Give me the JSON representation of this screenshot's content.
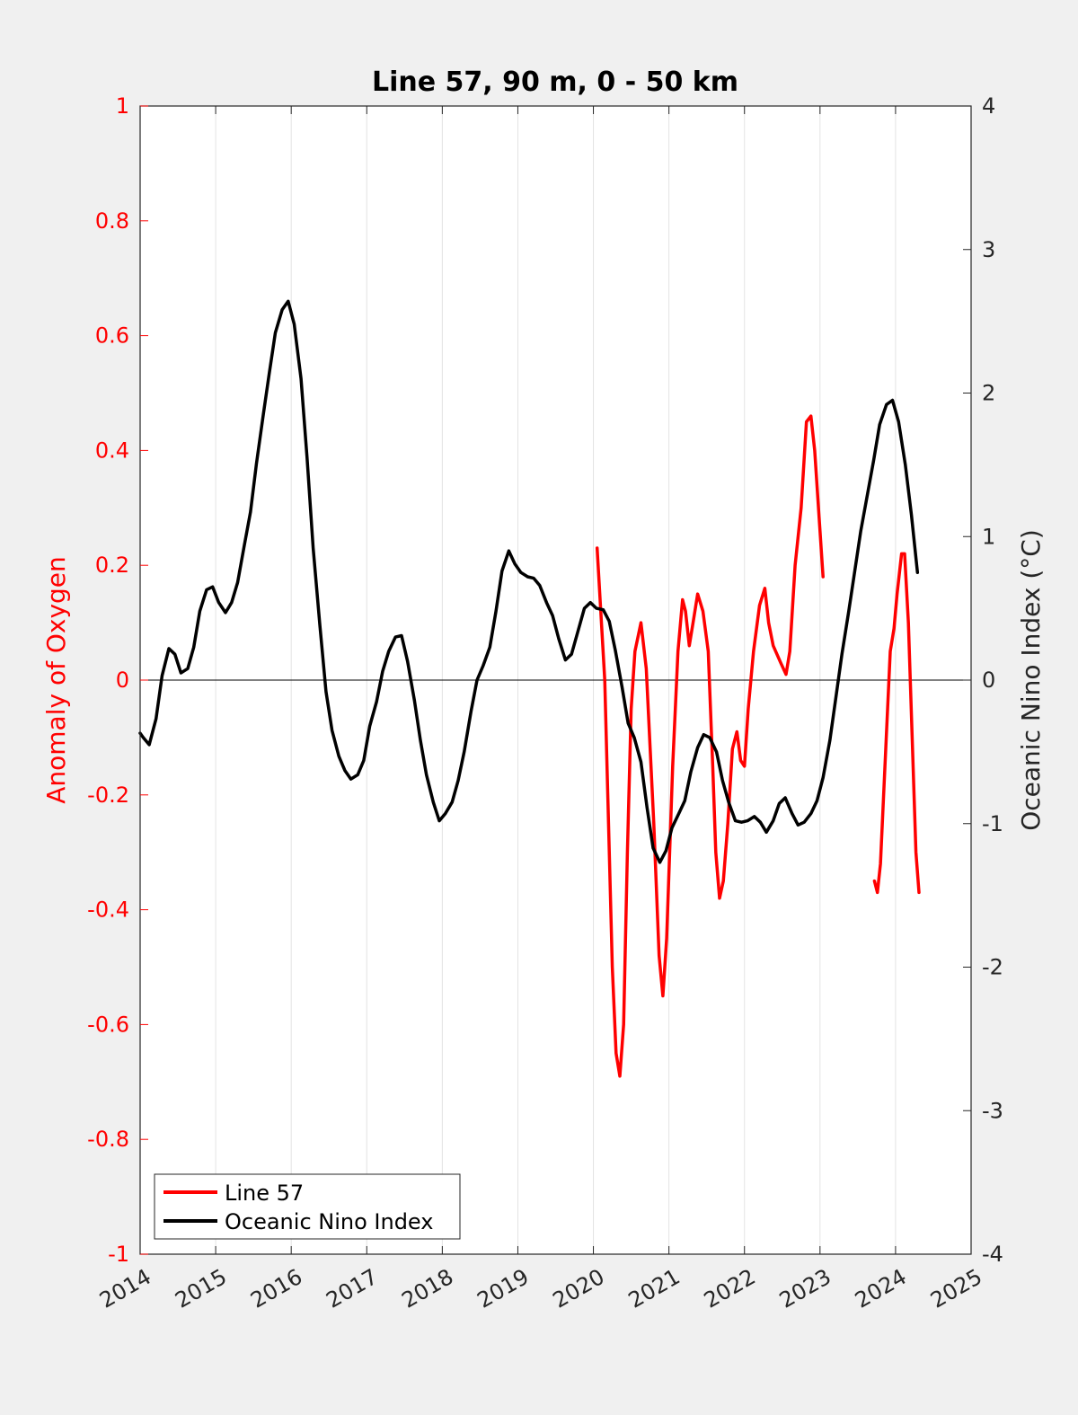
{
  "chart_data": {
    "type": "line",
    "title": "Line 57, 90 m, 0 - 50 km",
    "xlabel": "",
    "x_ticks": [
      "2014",
      "2015",
      "2016",
      "2017",
      "2018",
      "2019",
      "2020",
      "2021",
      "2022",
      "2023",
      "2024",
      "2025"
    ],
    "xlim": [
      2014,
      2025
    ],
    "y_left": {
      "label": "Anomaly of Oxygen",
      "lim": [
        -1,
        1
      ],
      "ticks": [
        "-1",
        "-0.8",
        "-0.6",
        "-0.4",
        "-0.2",
        "0",
        "0.2",
        "0.4",
        "0.6",
        "0.8",
        "1"
      ],
      "color": "#ff0000"
    },
    "y_right": {
      "label": "Oceanic Nino Index (°C)",
      "lim": [
        -4,
        4
      ],
      "ticks": [
        "-4",
        "-3",
        "-2",
        "-1",
        "0",
        "1",
        "2",
        "3",
        "4"
      ],
      "color": "#262626"
    },
    "grid": "vertical",
    "legend_position": "bottom-left",
    "series": [
      {
        "name": "Line 57",
        "axis": "left",
        "color": "#ff0000",
        "segments": [
          [
            [
              2020.05,
              0.23
            ],
            [
              2020.15,
              0.0
            ],
            [
              2020.2,
              -0.25
            ],
            [
              2020.25,
              -0.5
            ],
            [
              2020.3,
              -0.65
            ],
            [
              2020.35,
              -0.69
            ],
            [
              2020.4,
              -0.6
            ],
            [
              2020.45,
              -0.3
            ],
            [
              2020.5,
              -0.05
            ],
            [
              2020.55,
              0.05
            ],
            [
              2020.63,
              0.1
            ],
            [
              2020.7,
              0.02
            ],
            [
              2020.8,
              -0.25
            ],
            [
              2020.87,
              -0.48
            ],
            [
              2020.92,
              -0.55
            ],
            [
              2020.97,
              -0.45
            ],
            [
              2021.05,
              -0.15
            ],
            [
              2021.12,
              0.05
            ],
            [
              2021.18,
              0.14
            ],
            [
              2021.22,
              0.12
            ],
            [
              2021.27,
              0.06
            ],
            [
              2021.32,
              0.1
            ],
            [
              2021.38,
              0.15
            ],
            [
              2021.45,
              0.12
            ],
            [
              2021.52,
              0.05
            ],
            [
              2021.58,
              -0.15
            ],
            [
              2021.62,
              -0.3
            ],
            [
              2021.67,
              -0.38
            ],
            [
              2021.72,
              -0.35
            ],
            [
              2021.78,
              -0.25
            ],
            [
              2021.84,
              -0.12
            ],
            [
              2021.9,
              -0.09
            ],
            [
              2021.95,
              -0.14
            ],
            [
              2022.0,
              -0.15
            ],
            [
              2022.05,
              -0.05
            ],
            [
              2022.12,
              0.05
            ],
            [
              2022.2,
              0.13
            ],
            [
              2022.27,
              0.16
            ],
            [
              2022.32,
              0.1
            ],
            [
              2022.38,
              0.06
            ],
            [
              2022.48,
              0.03
            ],
            [
              2022.55,
              0.01
            ],
            [
              2022.6,
              0.05
            ],
            [
              2022.67,
              0.2
            ],
            [
              2022.75,
              0.3
            ],
            [
              2022.82,
              0.45
            ],
            [
              2022.88,
              0.46
            ],
            [
              2022.93,
              0.4
            ],
            [
              2022.98,
              0.3
            ],
            [
              2023.04,
              0.18
            ]
          ],
          [
            [
              2023.72,
              -0.35
            ],
            [
              2023.76,
              -0.37
            ],
            [
              2023.8,
              -0.32
            ],
            [
              2023.86,
              -0.15
            ],
            [
              2023.93,
              0.05
            ],
            [
              2023.98,
              0.09
            ],
            [
              2024.02,
              0.15
            ],
            [
              2024.08,
              0.22
            ],
            [
              2024.12,
              0.22
            ],
            [
              2024.17,
              0.1
            ],
            [
              2024.22,
              -0.1
            ],
            [
              2024.27,
              -0.3
            ],
            [
              2024.31,
              -0.37
            ]
          ]
        ]
      },
      {
        "name": "Oceanic Nino Index",
        "axis": "right",
        "color": "#000000",
        "segments": [
          [
            [
              2014.0,
              -0.37
            ],
            [
              2014.04,
              -0.4
            ],
            [
              2014.12,
              -0.45
            ],
            [
              2014.21,
              -0.27
            ],
            [
              2014.29,
              0.03
            ],
            [
              2014.38,
              0.22
            ],
            [
              2014.46,
              0.18
            ],
            [
              2014.54,
              0.05
            ],
            [
              2014.63,
              0.08
            ],
            [
              2014.71,
              0.23
            ],
            [
              2014.79,
              0.48
            ],
            [
              2014.88,
              0.63
            ],
            [
              2014.96,
              0.65
            ],
            [
              2015.04,
              0.54
            ],
            [
              2015.13,
              0.47
            ],
            [
              2015.21,
              0.54
            ],
            [
              2015.29,
              0.68
            ],
            [
              2015.38,
              0.94
            ],
            [
              2015.46,
              1.17
            ],
            [
              2015.54,
              1.51
            ],
            [
              2015.63,
              1.85
            ],
            [
              2015.71,
              2.14
            ],
            [
              2015.79,
              2.42
            ],
            [
              2015.88,
              2.58
            ],
            [
              2015.96,
              2.64
            ],
            [
              2016.04,
              2.48
            ],
            [
              2016.13,
              2.1
            ],
            [
              2016.21,
              1.55
            ],
            [
              2016.29,
              0.92
            ],
            [
              2016.38,
              0.38
            ],
            [
              2016.46,
              -0.08
            ],
            [
              2016.54,
              -0.35
            ],
            [
              2016.63,
              -0.53
            ],
            [
              2016.71,
              -0.63
            ],
            [
              2016.79,
              -0.69
            ],
            [
              2016.88,
              -0.66
            ],
            [
              2016.96,
              -0.56
            ],
            [
              2017.04,
              -0.32
            ],
            [
              2017.13,
              -0.15
            ],
            [
              2017.21,
              0.06
            ],
            [
              2017.29,
              0.2
            ],
            [
              2017.38,
              0.3
            ],
            [
              2017.46,
              0.31
            ],
            [
              2017.54,
              0.13
            ],
            [
              2017.63,
              -0.14
            ],
            [
              2017.71,
              -0.42
            ],
            [
              2017.79,
              -0.66
            ],
            [
              2017.88,
              -0.85
            ],
            [
              2017.96,
              -0.98
            ],
            [
              2018.04,
              -0.93
            ],
            [
              2018.13,
              -0.85
            ],
            [
              2018.21,
              -0.7
            ],
            [
              2018.29,
              -0.5
            ],
            [
              2018.38,
              -0.22
            ],
            [
              2018.46,
              0.0
            ],
            [
              2018.54,
              0.1
            ],
            [
              2018.63,
              0.23
            ],
            [
              2018.71,
              0.48
            ],
            [
              2018.79,
              0.76
            ],
            [
              2018.88,
              0.9
            ],
            [
              2018.96,
              0.81
            ],
            [
              2019.04,
              0.75
            ],
            [
              2019.13,
              0.72
            ],
            [
              2019.21,
              0.71
            ],
            [
              2019.29,
              0.66
            ],
            [
              2019.38,
              0.54
            ],
            [
              2019.46,
              0.45
            ],
            [
              2019.54,
              0.29
            ],
            [
              2019.63,
              0.14
            ],
            [
              2019.71,
              0.18
            ],
            [
              2019.79,
              0.33
            ],
            [
              2019.88,
              0.5
            ],
            [
              2019.96,
              0.54
            ],
            [
              2020.04,
              0.5
            ],
            [
              2020.13,
              0.49
            ],
            [
              2020.21,
              0.41
            ],
            [
              2020.29,
              0.21
            ],
            [
              2020.38,
              -0.05
            ],
            [
              2020.46,
              -0.3
            ],
            [
              2020.54,
              -0.4
            ],
            [
              2020.63,
              -0.57
            ],
            [
              2020.71,
              -0.89
            ],
            [
              2020.79,
              -1.17
            ],
            [
              2020.88,
              -1.27
            ],
            [
              2020.96,
              -1.19
            ],
            [
              2021.04,
              -1.03
            ],
            [
              2021.13,
              -0.93
            ],
            [
              2021.21,
              -0.84
            ],
            [
              2021.29,
              -0.64
            ],
            [
              2021.38,
              -0.47
            ],
            [
              2021.46,
              -0.38
            ],
            [
              2021.54,
              -0.4
            ],
            [
              2021.63,
              -0.5
            ],
            [
              2021.71,
              -0.7
            ],
            [
              2021.79,
              -0.85
            ],
            [
              2021.88,
              -0.98
            ],
            [
              2021.96,
              -0.99
            ],
            [
              2022.04,
              -0.98
            ],
            [
              2022.13,
              -0.95
            ],
            [
              2022.21,
              -0.99
            ],
            [
              2022.29,
              -1.06
            ],
            [
              2022.38,
              -0.98
            ],
            [
              2022.46,
              -0.86
            ],
            [
              2022.54,
              -0.82
            ],
            [
              2022.63,
              -0.93
            ],
            [
              2022.71,
              -1.01
            ],
            [
              2022.79,
              -0.99
            ],
            [
              2022.88,
              -0.93
            ],
            [
              2022.96,
              -0.84
            ],
            [
              2023.04,
              -0.68
            ],
            [
              2023.13,
              -0.42
            ],
            [
              2023.21,
              -0.12
            ],
            [
              2023.29,
              0.18
            ],
            [
              2023.38,
              0.48
            ],
            [
              2023.46,
              0.76
            ],
            [
              2023.54,
              1.04
            ],
            [
              2023.63,
              1.3
            ],
            [
              2023.71,
              1.53
            ],
            [
              2023.79,
              1.78
            ],
            [
              2023.88,
              1.92
            ],
            [
              2023.96,
              1.95
            ],
            [
              2024.04,
              1.8
            ],
            [
              2024.13,
              1.5
            ],
            [
              2024.21,
              1.15
            ],
            [
              2024.29,
              0.75
            ]
          ]
        ]
      }
    ]
  }
}
